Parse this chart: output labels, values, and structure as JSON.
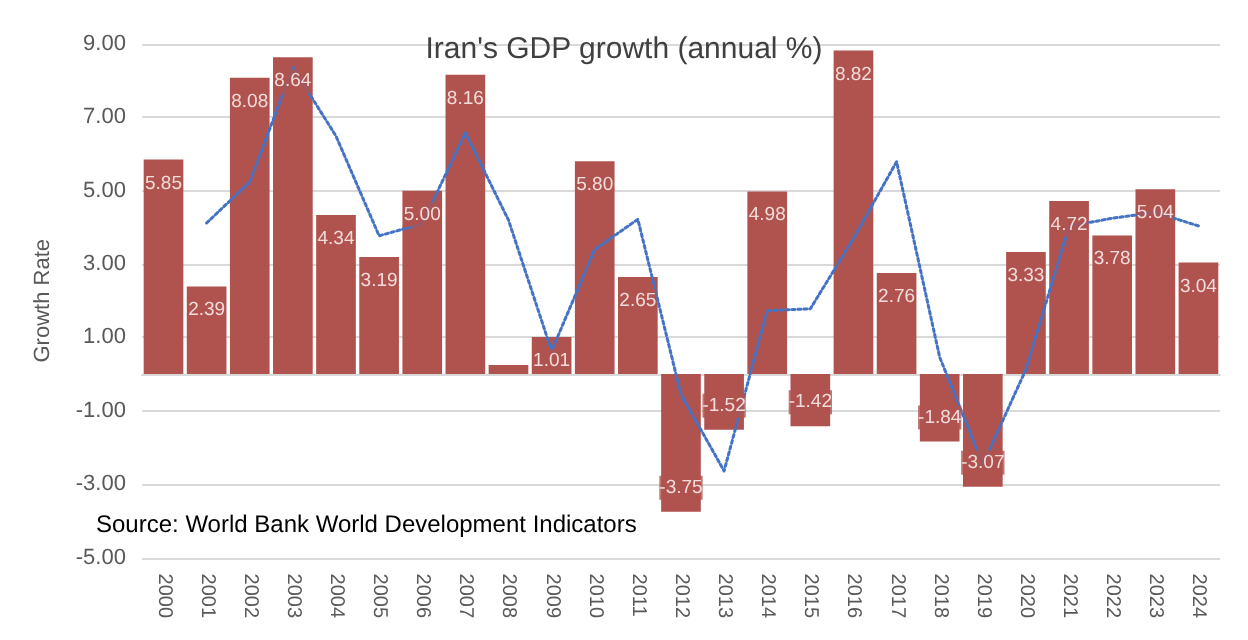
{
  "chart_data": {
    "type": "bar",
    "title": "Iran's GDP growth (annual %)",
    "ylabel": "Growth Rate",
    "categories": [
      "2000",
      "2001",
      "2002",
      "2003",
      "2004",
      "2005",
      "2006",
      "2007",
      "2008",
      "2009",
      "2010",
      "2011",
      "2012",
      "2013",
      "2014",
      "2015",
      "2016",
      "2017",
      "2018",
      "2019",
      "2020",
      "2021",
      "2022",
      "2023",
      "2024"
    ],
    "series": [
      {
        "color": "#b0524e",
        "values": [
          5.85,
          2.39,
          8.08,
          8.64,
          4.34,
          3.19,
          5.0,
          8.16,
          0.25,
          1.01,
          5.8,
          2.65,
          -3.75,
          -1.52,
          4.98,
          -1.42,
          8.82,
          2.76,
          -1.84,
          -3.07,
          3.33,
          4.72,
          3.78,
          5.04,
          3.04
        ],
        "value_labels": [
          "5.85",
          "2.39",
          "8.08",
          "8.64",
          "4.34",
          "3.19",
          "5.00",
          "8.16",
          null,
          "1.01",
          "5.80",
          "2.65",
          "-3.75",
          "-1.52",
          "4.98",
          "-1.42",
          "8.82",
          "2.76",
          "-1.84",
          "-3.07",
          "3.33",
          "4.72",
          "3.78",
          "5.04",
          "3.04"
        ]
      },
      {
        "type": "line",
        "color": "#4472c4",
        "line_style": "dotted",
        "marker": "none",
        "values": [
          null,
          4.12,
          5.24,
          8.36,
          6.49,
          3.77,
          4.1,
          6.58,
          4.2,
          0.63,
          3.4,
          4.22,
          -0.55,
          -2.64,
          1.73,
          1.78,
          3.7,
          5.79,
          0.46,
          -2.46,
          0.13,
          4.03,
          4.25,
          4.41,
          4.04
        ]
      }
    ],
    "ylim": [
      -5,
      9
    ],
    "yticks": [
      {
        "value": -5,
        "label": "-5.00"
      },
      {
        "value": -3,
        "label": "-3.00"
      },
      {
        "value": -1,
        "label": "-1.00"
      },
      {
        "value": 1,
        "label": "1.00"
      },
      {
        "value": 3,
        "label": "3.00"
      },
      {
        "value": 5,
        "label": "5.00"
      },
      {
        "value": 7,
        "label": "7.00"
      },
      {
        "value": 9,
        "label": "9.00"
      }
    ],
    "grid": "y",
    "annotations": [
      "Source: World Bank World Development Indicators"
    ]
  }
}
